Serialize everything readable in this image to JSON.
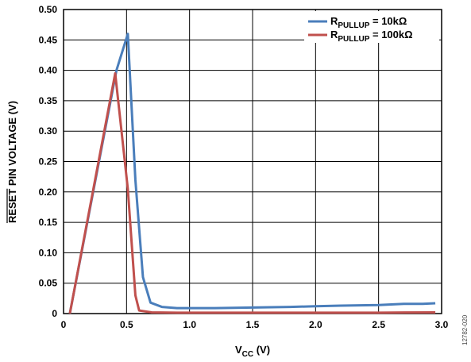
{
  "chart_data": {
    "type": "line",
    "title": "",
    "xlabel": {
      "main": "V",
      "sub": "CC",
      "unit": " (V)"
    },
    "ylabel": {
      "overline": "RESET",
      "rest": " PIN VOLTAGE (V)"
    },
    "xlim": [
      0,
      3.0
    ],
    "ylim": [
      0,
      0.5
    ],
    "x_ticks": [
      {
        "v": 0,
        "label": "0"
      },
      {
        "v": 0.5,
        "label": "0.5"
      },
      {
        "v": 1.0,
        "label": "1.0"
      },
      {
        "v": 1.5,
        "label": "1.5"
      },
      {
        "v": 2.0,
        "label": "2.0"
      },
      {
        "v": 2.5,
        "label": "2.5"
      },
      {
        "v": 3.0,
        "label": "3.0"
      }
    ],
    "y_ticks": [
      {
        "v": 0,
        "label": "0"
      },
      {
        "v": 0.05,
        "label": "0.05"
      },
      {
        "v": 0.1,
        "label": "0.10"
      },
      {
        "v": 0.15,
        "label": "0.15"
      },
      {
        "v": 0.2,
        "label": "0.20"
      },
      {
        "v": 0.25,
        "label": "0.25"
      },
      {
        "v": 0.3,
        "label": "0.30"
      },
      {
        "v": 0.35,
        "label": "0.35"
      },
      {
        "v": 0.4,
        "label": "0.40"
      },
      {
        "v": 0.45,
        "label": "0.45"
      },
      {
        "v": 0.5,
        "label": "0.50"
      }
    ],
    "grid": true,
    "legend_position": "top-right",
    "series": [
      {
        "name": {
          "main": "R",
          "sub": "PULLUP",
          "value": " = 10kΩ"
        },
        "color": "#4a7ebb",
        "points": [
          [
            0.05,
            0.0
          ],
          [
            0.42,
            0.4
          ],
          [
            0.51,
            0.46
          ],
          [
            0.57,
            0.22
          ],
          [
            0.63,
            0.06
          ],
          [
            0.69,
            0.018
          ],
          [
            0.78,
            0.011
          ],
          [
            0.9,
            0.009
          ],
          [
            1.0,
            0.009
          ],
          [
            1.2,
            0.009
          ],
          [
            1.5,
            0.01
          ],
          [
            1.8,
            0.011
          ],
          [
            2.0,
            0.012
          ],
          [
            2.2,
            0.013
          ],
          [
            2.5,
            0.014
          ],
          [
            2.7,
            0.016
          ],
          [
            2.85,
            0.016
          ],
          [
            2.95,
            0.017
          ]
        ]
      },
      {
        "name": {
          "main": "R",
          "sub": "PULLUP",
          "value": " = 100kΩ"
        },
        "color": "#c0504d",
        "points": [
          [
            0.05,
            0.0
          ],
          [
            0.41,
            0.395
          ],
          [
            0.51,
            0.205
          ],
          [
            0.57,
            0.03
          ],
          [
            0.6,
            0.005
          ],
          [
            0.7,
            0.002
          ],
          [
            0.9,
            0.0015
          ],
          [
            1.2,
            0.0015
          ],
          [
            1.5,
            0.0015
          ],
          [
            2.0,
            0.0015
          ],
          [
            2.5,
            0.0015
          ],
          [
            2.95,
            0.002
          ]
        ]
      }
    ]
  },
  "figure_id": "12782-020"
}
